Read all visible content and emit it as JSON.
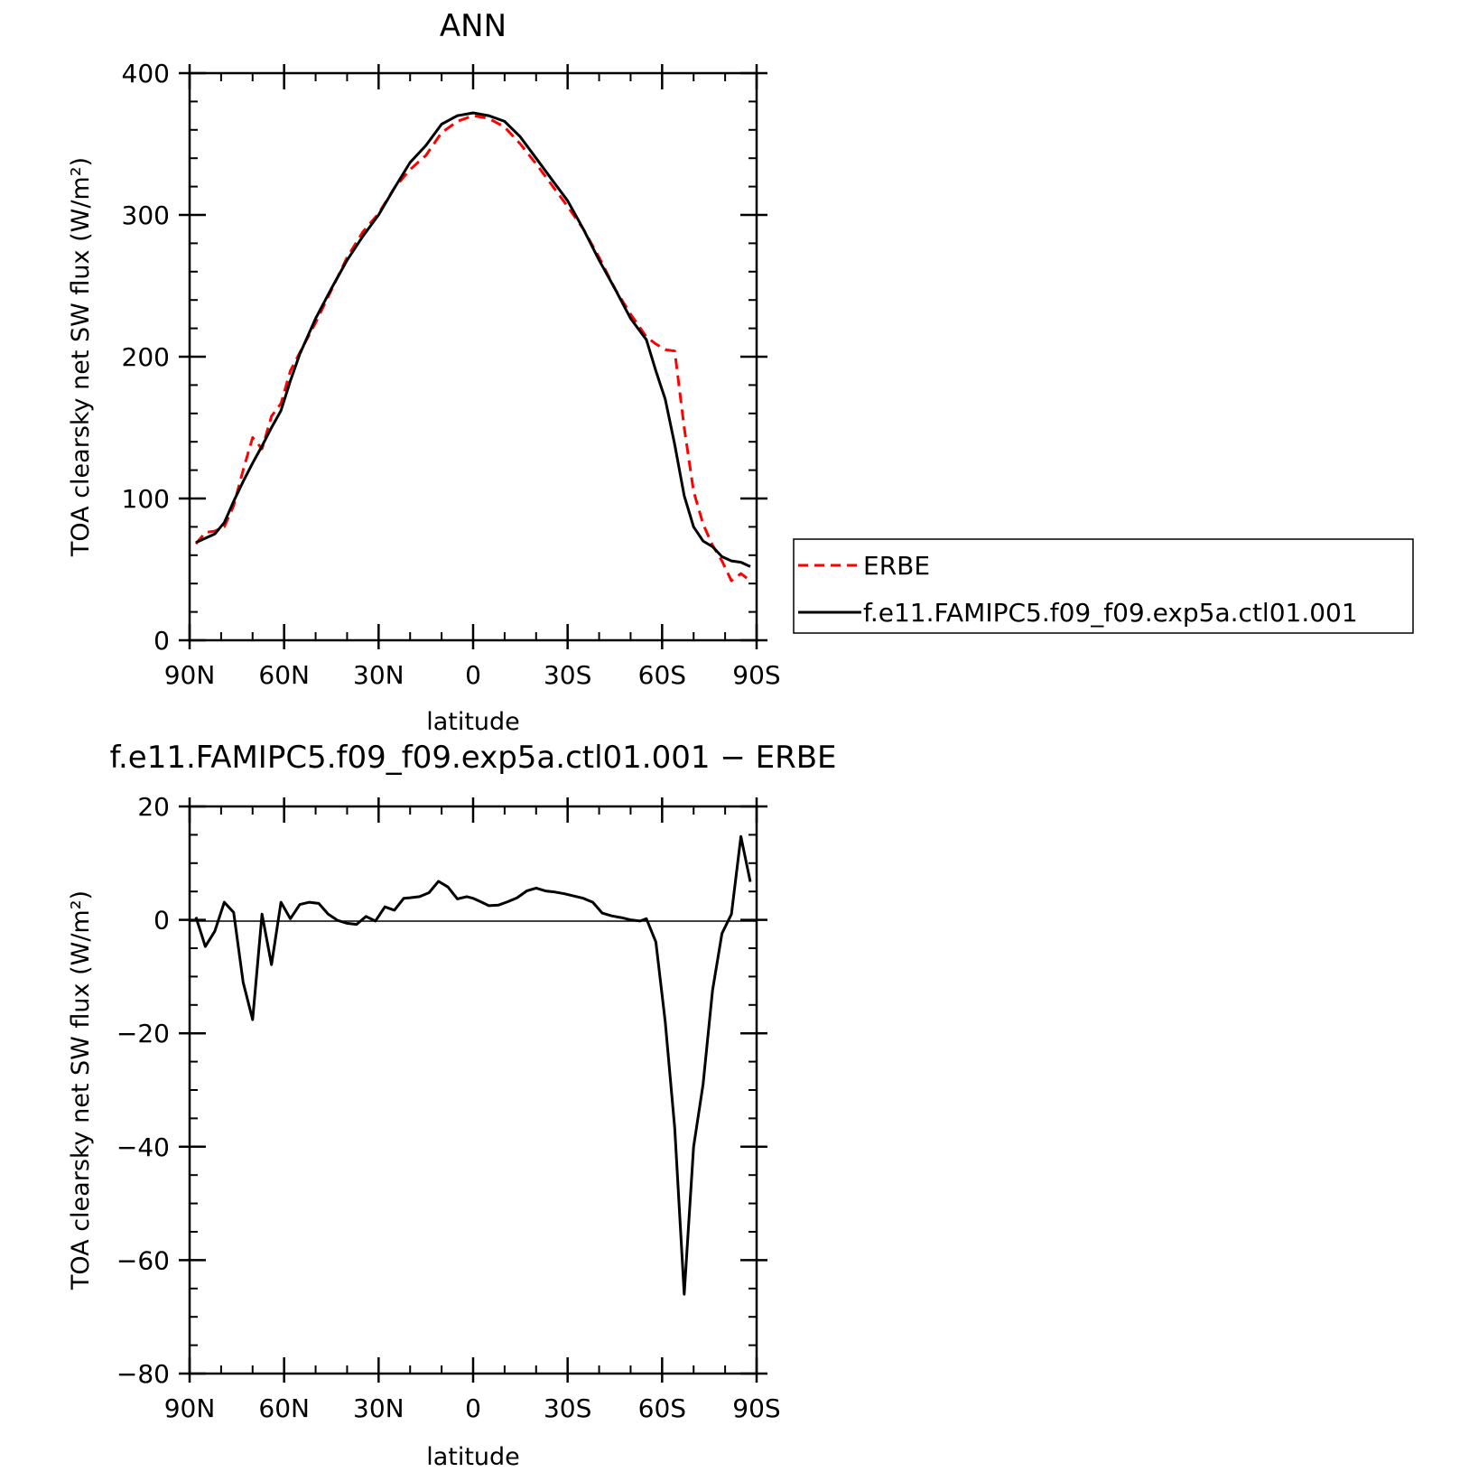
{
  "chart_data": [
    {
      "type": "line",
      "title": "ANN",
      "xlabel": "latitude",
      "ylabel": "TOA clearsky net SW flux (W/m²)",
      "xlim": [
        90,
        -90
      ],
      "ylim": [
        0,
        400
      ],
      "x_ticks": [
        90,
        60,
        30,
        0,
        -30,
        -60,
        -90
      ],
      "x_tick_labels": [
        "90N",
        "60N",
        "30N",
        "0",
        "30S",
        "60S",
        "90S"
      ],
      "y_ticks": [
        0,
        100,
        200,
        300,
        400
      ],
      "y_tick_labels": [
        "0",
        "100",
        "200",
        "300",
        "400"
      ],
      "legend_position": "right, outside plot",
      "series": [
        {
          "name": "ERBE",
          "color": "#ff0000",
          "dash": "dashed",
          "x": [
            88,
            85,
            82,
            79,
            76,
            73,
            70,
            67,
            64,
            61,
            58,
            55,
            50,
            45,
            40,
            35,
            30,
            25,
            20,
            15,
            10,
            5,
            0,
            -5,
            -10,
            -15,
            -20,
            -25,
            -30,
            -35,
            -40,
            -45,
            -50,
            -55,
            -58,
            -61,
            -64,
            -67,
            -70,
            -73,
            -76,
            -79,
            -82,
            -85,
            -88
          ],
          "y": [
            68,
            76,
            77,
            80,
            95,
            120,
            143,
            135,
            158,
            167,
            190,
            203,
            224,
            247,
            270,
            288,
            301,
            319,
            332,
            342,
            358,
            366,
            370,
            368,
            362,
            350,
            336,
            321,
            306,
            290,
            270,
            248,
            230,
            214,
            209,
            205,
            204,
            150,
            105,
            82,
            67,
            56,
            42,
            47,
            42
          ]
        },
        {
          "name": "f.e11.FAMIPC5.f09_f09.exp5a.ctl01.001",
          "color": "#000000",
          "dash": "solid",
          "x": [
            88,
            85,
            82,
            79,
            76,
            73,
            70,
            67,
            64,
            61,
            58,
            55,
            50,
            45,
            40,
            35,
            30,
            25,
            20,
            15,
            10,
            5,
            0,
            -5,
            -10,
            -15,
            -20,
            -25,
            -30,
            -35,
            -40,
            -45,
            -50,
            -55,
            -58,
            -61,
            -64,
            -67,
            -70,
            -73,
            -76,
            -79,
            -82,
            -85,
            -88
          ],
          "y": [
            69,
            72,
            75,
            83,
            98,
            112,
            125,
            137,
            150,
            162,
            183,
            202,
            227,
            248,
            268,
            285,
            300,
            319,
            337,
            349,
            364,
            370,
            372,
            370,
            366,
            355,
            340,
            325,
            310,
            290,
            268,
            248,
            227,
            212,
            190,
            170,
            138,
            102,
            80,
            70,
            66,
            59,
            56,
            55,
            52
          ]
        }
      ]
    },
    {
      "type": "line",
      "title": "f.e11.FAMIPC5.f09_f09.exp5a.ctl01.001 − ERBE",
      "xlabel": "latitude",
      "ylabel": "TOA clearsky net SW flux (W/m²)",
      "xlim": [
        90,
        -90
      ],
      "ylim": [
        -80,
        20
      ],
      "x_ticks": [
        90,
        60,
        30,
        0,
        -30,
        -60,
        -90
      ],
      "x_tick_labels": [
        "90N",
        "60N",
        "30N",
        "0",
        "30S",
        "60S",
        "90S"
      ],
      "y_ticks": [
        -80,
        -60,
        -40,
        -20,
        0,
        20
      ],
      "y_tick_labels": [
        "−80",
        "−60",
        "−40",
        "−20",
        "0",
        "20"
      ],
      "series": [
        {
          "color": "#000000",
          "dash": "solid",
          "x": [
            88,
            85,
            82,
            79,
            76,
            73,
            70,
            67,
            64,
            61,
            58,
            55,
            52,
            49,
            46,
            43,
            40,
            37,
            34,
            31,
            28,
            25,
            22,
            20,
            17,
            14,
            11,
            8,
            5,
            2,
            0,
            -2,
            -5,
            -8,
            -11,
            -14,
            -17,
            -20,
            -23,
            -26,
            -29,
            -32,
            -35,
            -38,
            -41,
            -44,
            -47,
            -50,
            -53,
            -55,
            -58,
            -61,
            -64,
            -67,
            -70,
            -73,
            -76,
            -79,
            -82,
            -85,
            -88
          ],
          "y": [
            0.5,
            -4.7,
            -2,
            3.1,
            1.3,
            -11,
            -17.6,
            1,
            -7.9,
            3.1,
            0.2,
            2.7,
            3.1,
            2.9,
            1,
            -0.1,
            -0.6,
            -0.8,
            0.6,
            -0.2,
            2.3,
            1.7,
            3.8,
            3.9,
            4.1,
            4.8,
            6.8,
            5.8,
            3.7,
            4.1,
            3.8,
            3.3,
            2.5,
            2.6,
            3.2,
            3.9,
            5.1,
            5.6,
            5.1,
            4.9,
            4.6,
            4.2,
            3.8,
            3.1,
            1.2,
            0.7,
            0.4,
            0.0,
            -0.2,
            0.2,
            -3.9,
            -18,
            -36.7,
            -66,
            -40,
            -29,
            -12.4,
            -2.4,
            1,
            14.7,
            6.7
          ]
        }
      ]
    }
  ],
  "legend": {
    "items": [
      {
        "label": "ERBE"
      },
      {
        "label": "f.e11.FAMIPC5.f09_f09.exp5a.ctl01.001"
      }
    ]
  }
}
